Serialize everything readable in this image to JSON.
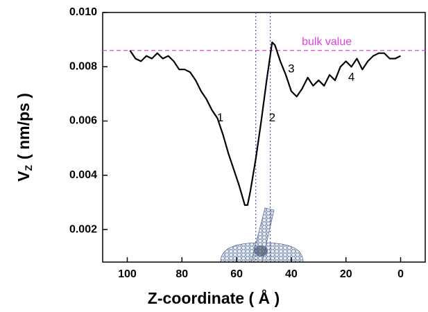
{
  "chart_data": {
    "type": "line",
    "x_label": "Z-coordinate ( Å )",
    "y_label": "V",
    "y_label_sub": "Z",
    "y_label_unit": "( nm/ps )",
    "xlim": [
      109,
      -9
    ],
    "ylim": [
      0.0008,
      0.01
    ],
    "xticks": [
      100,
      80,
      60,
      40,
      20,
      0
    ],
    "yticks": [
      0.002,
      0.004,
      0.006,
      0.008,
      {
        "value": 0.01,
        "label": "0.010"
      }
    ],
    "x": [
      99,
      97,
      95,
      93,
      91,
      89,
      87,
      85,
      83,
      81,
      79,
      77,
      75,
      73,
      71,
      69,
      67,
      65,
      63,
      61,
      59,
      57,
      56,
      55,
      53,
      51,
      49,
      47,
      46,
      44,
      42,
      40,
      38,
      36,
      34,
      32,
      30,
      28,
      26,
      24,
      22,
      20,
      18,
      16,
      14,
      12,
      10,
      8,
      6,
      4,
      2,
      0
    ],
    "series": [
      {
        "color": "#000000",
        "values": [
          0.0086,
          0.0083,
          0.0082,
          0.0084,
          0.0083,
          0.0085,
          0.0083,
          0.0084,
          0.0082,
          0.0079,
          0.0079,
          0.0078,
          0.0075,
          0.0071,
          0.0068,
          0.0064,
          0.0061,
          0.0055,
          0.0048,
          0.0042,
          0.0036,
          0.0029,
          0.0029,
          0.0034,
          0.0046,
          0.006,
          0.0075,
          0.0089,
          0.0088,
          0.0082,
          0.0077,
          0.0071,
          0.0069,
          0.0072,
          0.0076,
          0.0073,
          0.0075,
          0.0073,
          0.0077,
          0.0075,
          0.008,
          0.0082,
          0.008,
          0.0083,
          0.0079,
          0.0082,
          0.0084,
          0.0085,
          0.0085,
          0.0083,
          0.0083,
          0.0084
        ]
      }
    ],
    "hlines": [
      {
        "value": 0.0086,
        "label": "bulk value",
        "label_x": 27,
        "color": "#e040e0"
      }
    ],
    "vlines": [
      {
        "value": 53,
        "color": "#5050c8"
      },
      {
        "value": 47.7,
        "color": "#5050c8"
      }
    ],
    "annotations": [
      {
        "text": "1",
        "x": 66,
        "y": 0.0061
      },
      {
        "text": "2",
        "x": 47,
        "y": 0.0061
      },
      {
        "text": "3",
        "x": 40,
        "y": 0.0079
      },
      {
        "text": "4",
        "x": 18,
        "y": 0.0076
      }
    ]
  }
}
